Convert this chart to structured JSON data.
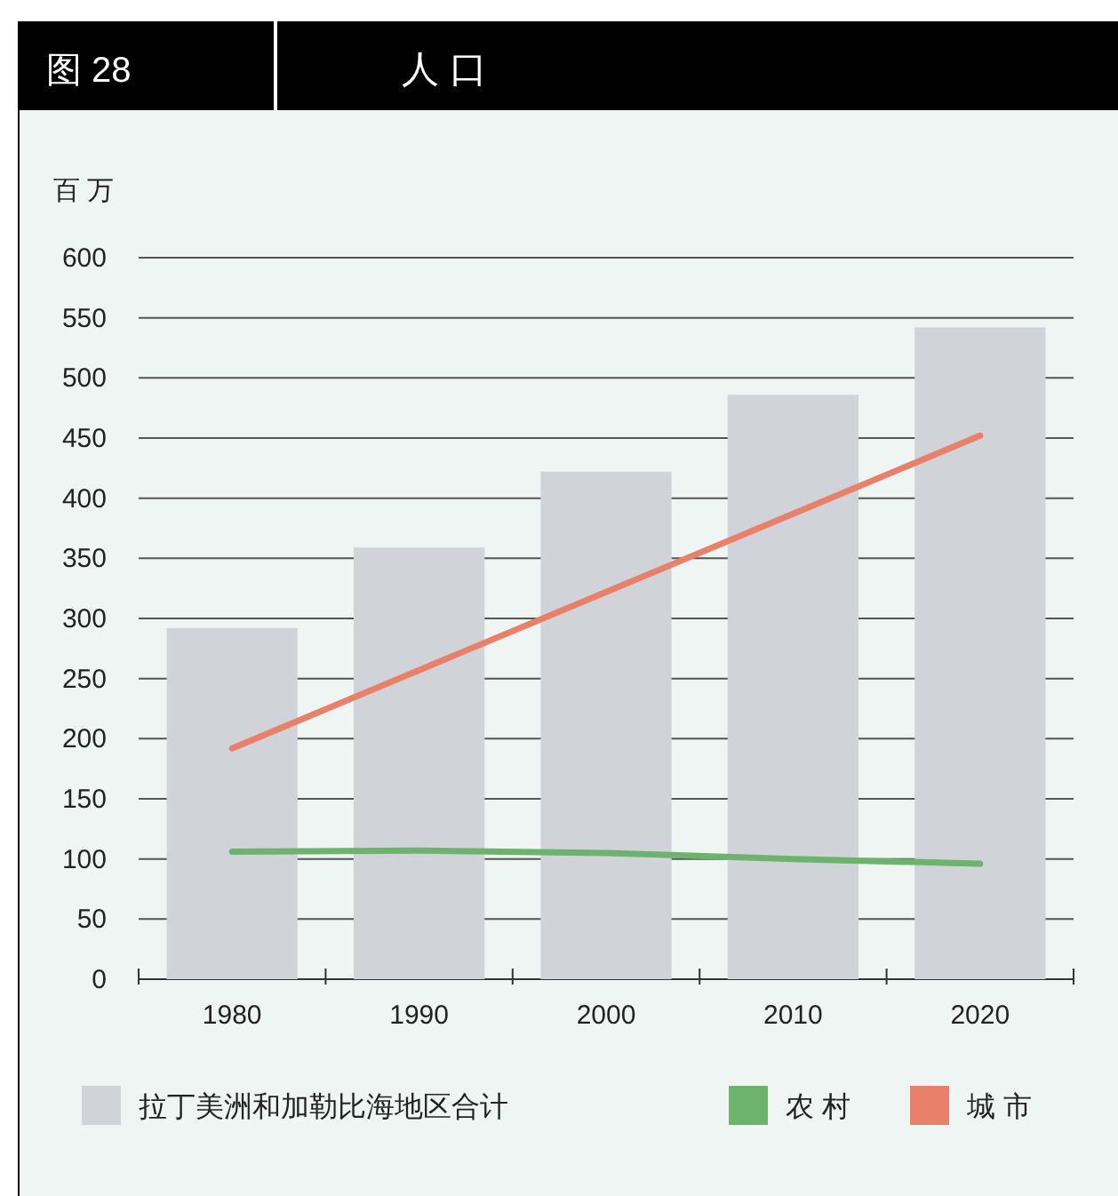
{
  "chart_data": {
    "type": "bar",
    "title": "人 口",
    "subtitle": "图 28",
    "ylabel": "百 万",
    "categories": [
      "1980",
      "1990",
      "2000",
      "2010",
      "2020"
    ],
    "series": [
      {
        "name": "拉丁美洲和加勒比海地区合计",
        "color": "#d0d3d8",
        "values": [
          292,
          359,
          422,
          486,
          542
        ]
      },
      {
        "name": "农 村",
        "type": "line",
        "color": "#6db36d",
        "values": [
          106,
          107,
          105,
          100,
          96
        ]
      },
      {
        "name": "城 市",
        "type": "line",
        "color": "#e8806a",
        "values": [
          192,
          257,
          322,
          387,
          452
        ]
      }
    ],
    "ylim": [
      0,
      600
    ],
    "yticks": [
      0,
      50,
      100,
      150,
      200,
      250,
      300,
      350,
      400,
      450,
      500,
      550,
      600
    ],
    "grid": "y",
    "legend": "bottom"
  }
}
